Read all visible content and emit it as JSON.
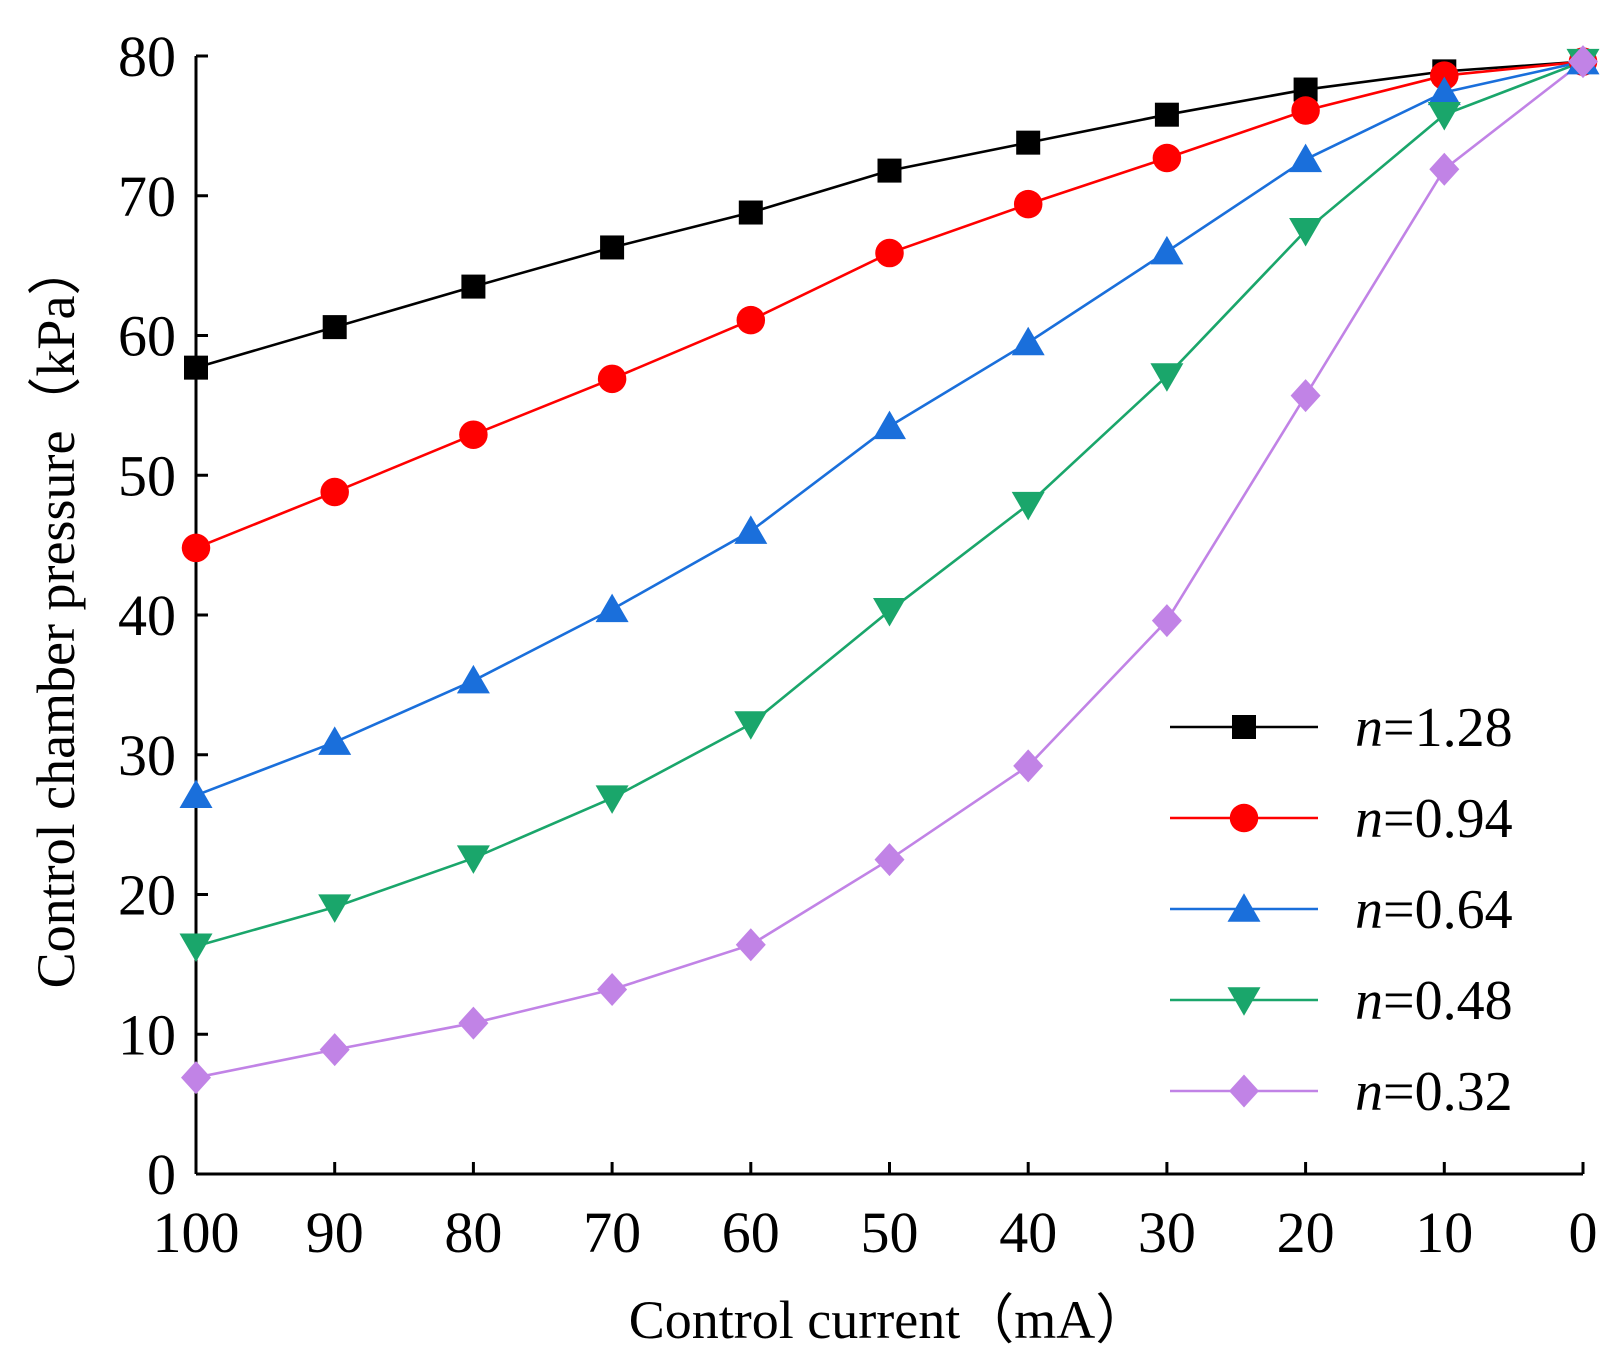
{
  "chart_data": {
    "type": "line",
    "title": "",
    "xlabel": "Control current（mA）",
    "ylabel": "Control chamber pressure（kPa）",
    "xlim": [
      100,
      0
    ],
    "ylim": [
      0,
      80
    ],
    "x_reversed": true,
    "x_ticks": [
      "100",
      "90",
      "80",
      "70",
      "60",
      "50",
      "40",
      "30",
      "20",
      "10",
      "0"
    ],
    "y_ticks": [
      "0",
      "10",
      "20",
      "30",
      "40",
      "50",
      "60",
      "70",
      "80"
    ],
    "x_tick_values": [
      100,
      90,
      80,
      70,
      60,
      50,
      40,
      30,
      20,
      10,
      0
    ],
    "y_tick_values": [
      0,
      10,
      20,
      30,
      40,
      50,
      60,
      70,
      80
    ],
    "legend_position": "bottom-right",
    "grid": false,
    "x": [
      100,
      90,
      80,
      70,
      60,
      50,
      40,
      30,
      20,
      10,
      0
    ],
    "series": [
      {
        "name": "n=1.28",
        "var": "n",
        "value": "=1.28",
        "color": "#000000",
        "marker": "square",
        "values": [
          57.7,
          60.6,
          63.5,
          66.3,
          68.8,
          71.8,
          73.8,
          75.8,
          77.6,
          78.9,
          79.6
        ]
      },
      {
        "name": "n=0.94",
        "var": "n",
        "value": "=0.94",
        "color": "#ff0000",
        "marker": "circle",
        "values": [
          44.8,
          48.8,
          52.9,
          56.9,
          61.1,
          65.9,
          69.4,
          72.7,
          76.1,
          78.6,
          79.6
        ]
      },
      {
        "name": "n=0.64",
        "var": "n",
        "value": "=0.64",
        "color": "#1a6fdb",
        "marker": "triangle-up",
        "values": [
          27.1,
          30.9,
          35.3,
          40.4,
          46.0,
          53.5,
          59.5,
          66.0,
          72.6,
          77.4,
          79.6
        ]
      },
      {
        "name": "n=0.48",
        "var": "n",
        "value": "=0.48",
        "color": "#1aa66b",
        "marker": "triangle-down",
        "values": [
          16.3,
          19.1,
          22.6,
          26.9,
          32.2,
          40.3,
          47.9,
          57.1,
          67.5,
          75.8,
          79.6
        ]
      },
      {
        "name": "n=0.32",
        "var": "n",
        "value": "=0.32",
        "color": "#c183e6",
        "marker": "diamond",
        "values": [
          6.9,
          8.9,
          10.8,
          13.2,
          16.4,
          22.5,
          29.2,
          39.6,
          55.7,
          71.9,
          79.6
        ]
      }
    ]
  }
}
